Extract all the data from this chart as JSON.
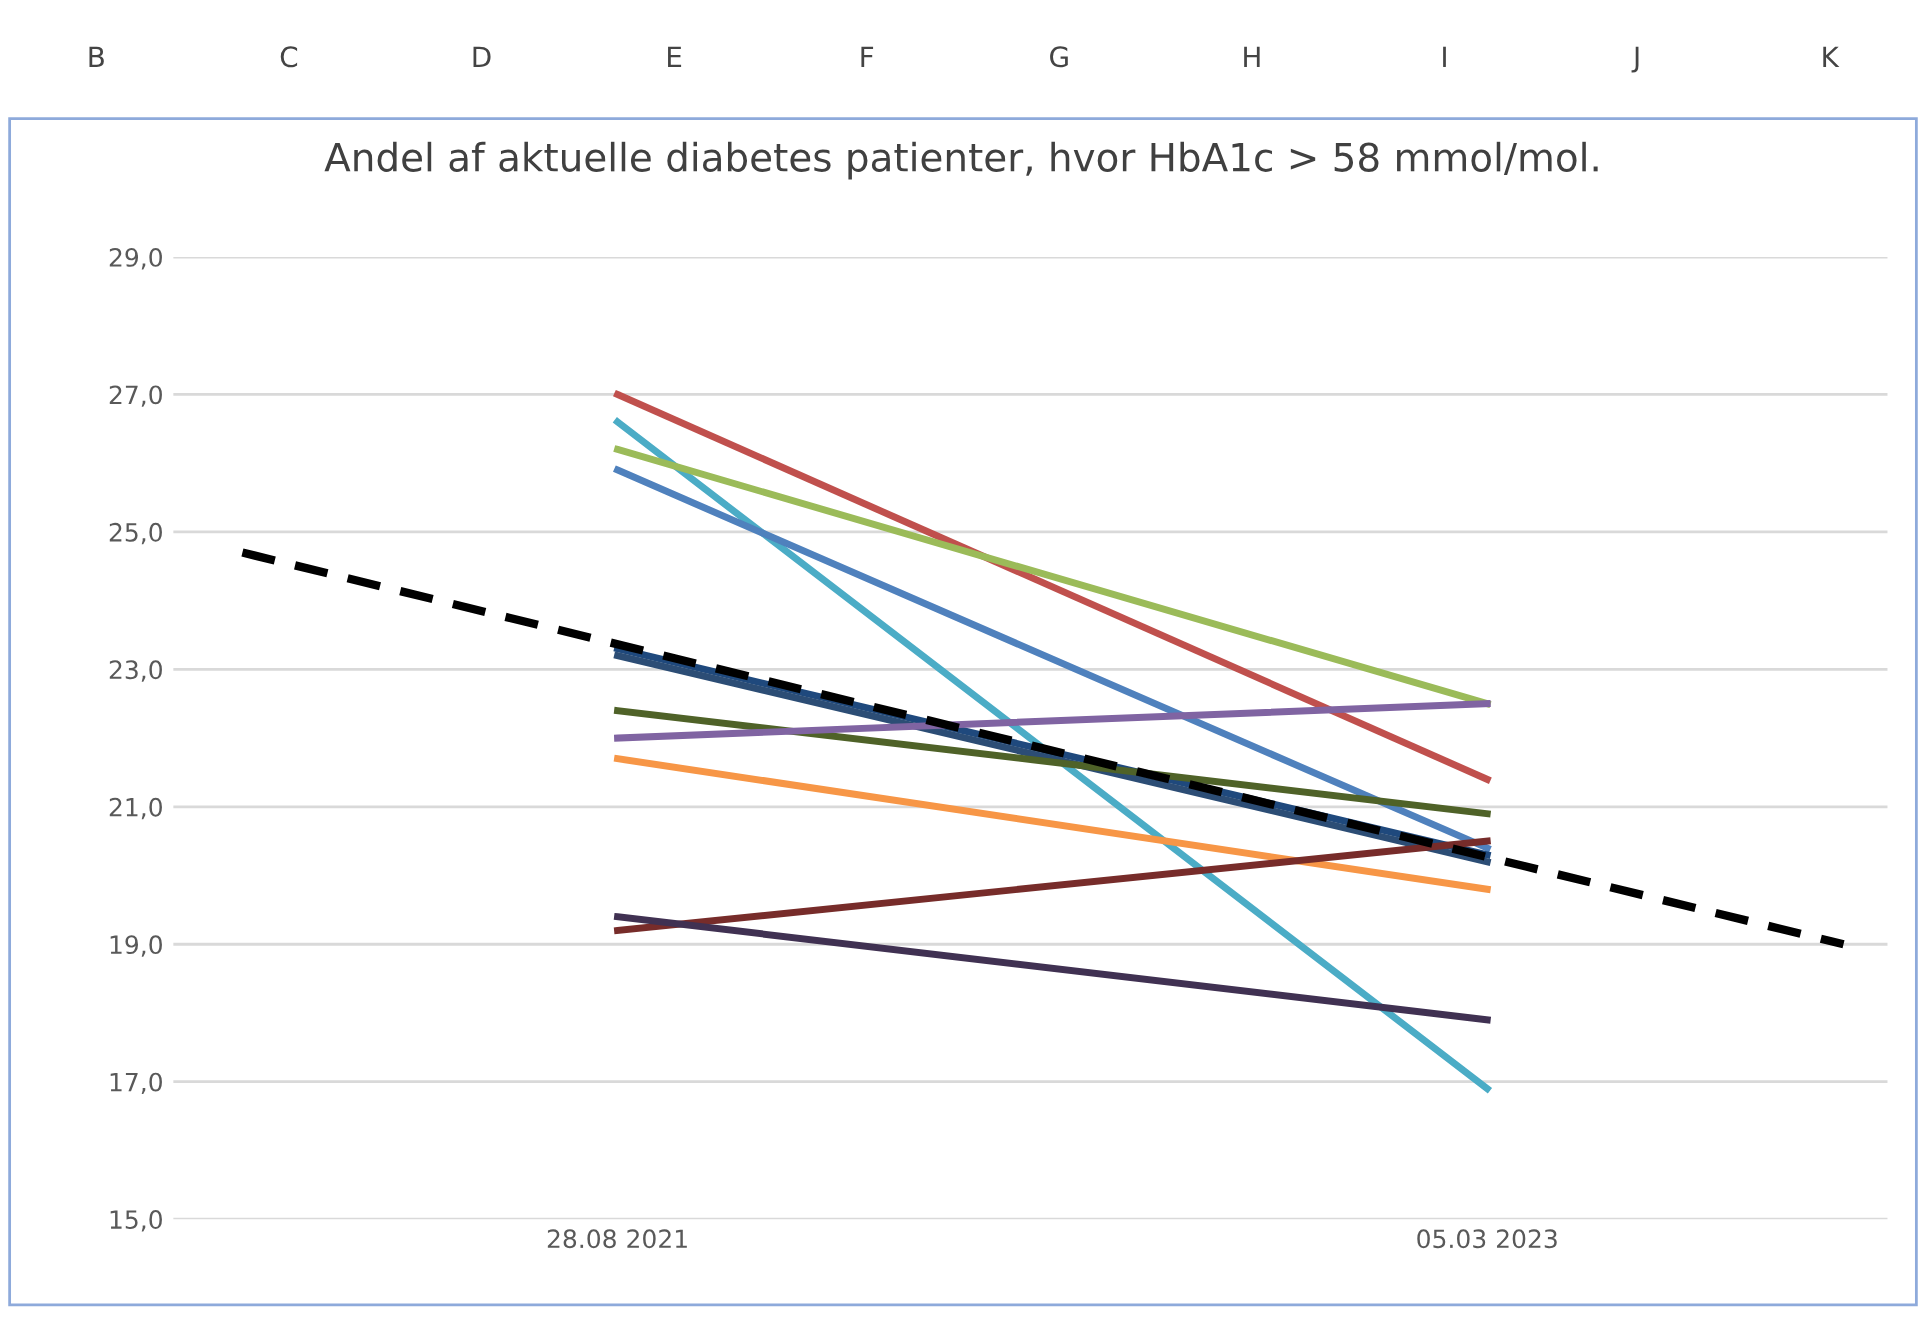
{
  "chart_data": {
    "type": "line",
    "title": "Andel af aktuelle diabetes patienter, hvor HbA1c > 58 mmol/mol.",
    "x": [
      "2021-08-28",
      "2023-03-05"
    ],
    "series": [
      {
        "color": "#c0504d",
        "values": [
          27.0,
          21.4
        ]
      },
      {
        "color": "#4bacc6",
        "values": [
          26.6,
          16.9
        ]
      },
      {
        "color": "#9bbb59",
        "values": [
          26.2,
          22.5
        ]
      },
      {
        "color": "#4f81bd",
        "values": [
          25.9,
          20.4
        ]
      },
      {
        "color": "#1f497d",
        "values": [
          23.3,
          20.3
        ]
      },
      {
        "color": "#2c4d75",
        "values": [
          23.2,
          20.2
        ]
      },
      {
        "color": "#4f6228",
        "values": [
          22.4,
          20.9
        ]
      },
      {
        "color": "#8064a2",
        "values": [
          22.0,
          22.5
        ]
      },
      {
        "color": "#f79646",
        "values": [
          21.7,
          19.8
        ]
      },
      {
        "color": "#772c2a",
        "values": [
          19.2,
          20.5
        ]
      },
      {
        "color": "#403152",
        "values": [
          19.4,
          17.9
        ]
      },
      {
        "type": "line",
        "color": "#000000",
        "line_style": "dashed",
        "x": [
          "2021-01-01",
          "2023-10-18"
        ],
        "values": [
          24.7,
          19.0
        ]
      }
    ],
    "xlim": [
      "2020-11-18",
      "2023-11-15"
    ],
    "xticks": [
      {
        "value": "2021-08-28",
        "label": "28.08 2021"
      },
      {
        "value": "2023-03-05",
        "label": "05.03 2023"
      }
    ],
    "ylim": [
      15,
      29
    ],
    "yticks": [
      {
        "value": 15,
        "label": "15,0"
      },
      {
        "value": 17,
        "label": "17,0"
      },
      {
        "value": 19,
        "label": "19,0"
      },
      {
        "value": 21,
        "label": "21,0"
      },
      {
        "value": 23,
        "label": "23,0"
      },
      {
        "value": 25,
        "label": "25,0"
      },
      {
        "value": 27,
        "label": "27,0"
      },
      {
        "value": 29,
        "label": "29,0"
      }
    ],
    "grid": "y",
    "annotations": [
      "B",
      "C",
      "D",
      "E",
      "F",
      "G",
      "H",
      "I",
      "J",
      "K"
    ]
  }
}
